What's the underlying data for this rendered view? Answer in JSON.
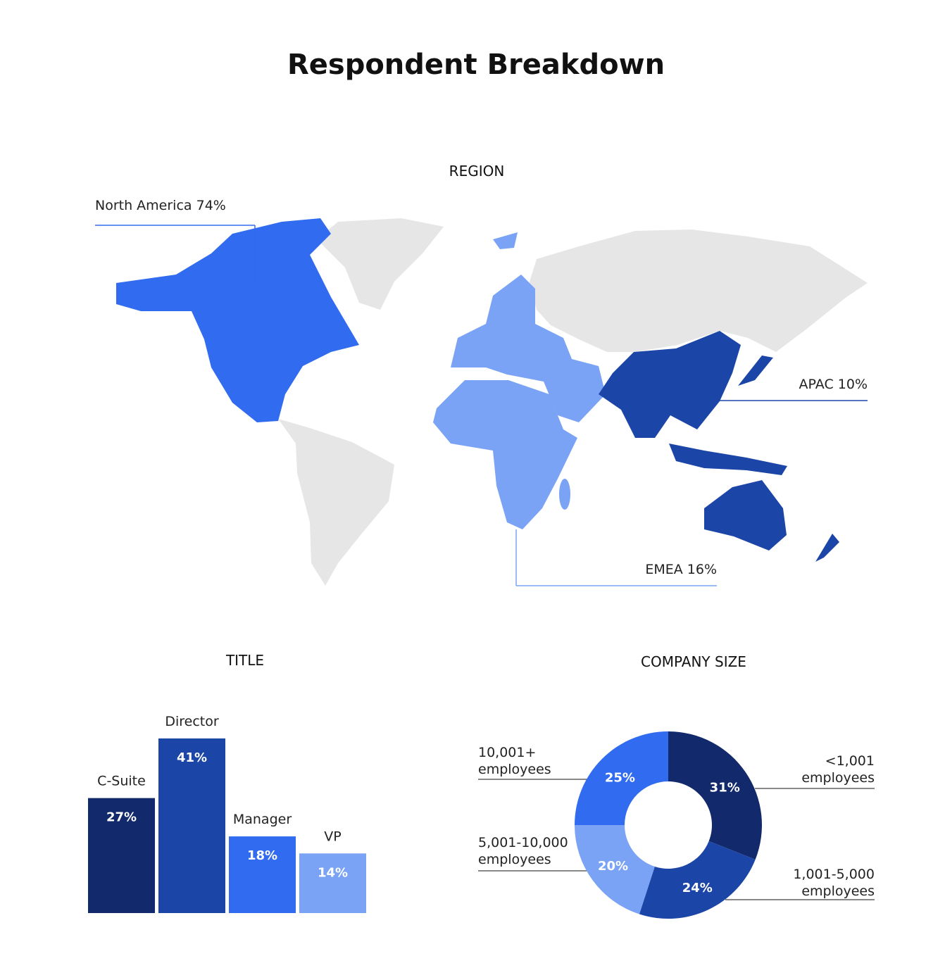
{
  "title": "Respondent Breakdown",
  "chart_data": [
    {
      "type": "map",
      "title": "REGION",
      "categories": [
        "North America",
        "EMEA",
        "APAC"
      ],
      "values": [
        74,
        16,
        10
      ],
      "value_labels": [
        "74%",
        "16%",
        "10%"
      ],
      "colors": [
        "#316bf0",
        "#7aa3f5",
        "#1c45a8"
      ]
    },
    {
      "type": "bar",
      "title": "TITLE",
      "categories": [
        "C-Suite",
        "Director",
        "Manager",
        "VP"
      ],
      "values": [
        27,
        41,
        18,
        14
      ],
      "value_labels": [
        "27%",
        "41%",
        "18%",
        "14%"
      ],
      "colors": [
        "#12296b",
        "#1c45a8",
        "#316bf0",
        "#7aa3f5"
      ]
    },
    {
      "type": "donut",
      "title": "COMPANY SIZE",
      "categories": [
        "<1,001 employees",
        "1,001-5,000 employees",
        "5,001-10,000 employees",
        "10,001+ employees"
      ],
      "values": [
        31,
        24,
        20,
        25
      ],
      "value_labels": [
        "31%",
        "24%",
        "20%",
        "25%"
      ],
      "colors": [
        "#12296b",
        "#1c45a8",
        "#7aa3f5",
        "#316bf0"
      ]
    }
  ]
}
